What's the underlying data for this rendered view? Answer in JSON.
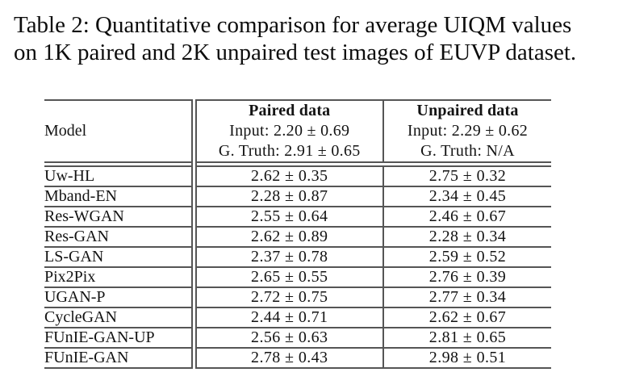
{
  "caption": {
    "line1": "Table 2: Quantitative comparison for average UIQM values",
    "line2": "on 1K paired and 2K unpaired test images of EUVP dataset."
  },
  "table": {
    "header": {
      "model_label": "Model",
      "paired": {
        "title": "Paired data",
        "input": "Input: 2.20 ± 0.69",
        "gtruth": "G. Truth: 2.91 ± 0.65"
      },
      "unpaired": {
        "title": "Unpaired data",
        "input": "Input: 2.29 ± 0.62",
        "gtruth": "G. Truth: N/A"
      }
    },
    "rows": [
      {
        "model": "Uw-HL",
        "paired": "2.62 ± 0.35",
        "unpaired": "2.75 ± 0.32"
      },
      {
        "model": "Mband-EN",
        "paired": "2.28 ± 0.87",
        "unpaired": "2.34 ± 0.45"
      },
      {
        "model": "Res-WGAN",
        "paired": "2.55 ± 0.64",
        "unpaired": "2.46 ± 0.67"
      },
      {
        "model": "Res-GAN",
        "paired": "2.62 ± 0.89",
        "unpaired": "2.28 ± 0.34"
      },
      {
        "model": "LS-GAN",
        "paired": "2.37 ± 0.78",
        "unpaired": "2.59 ± 0.52"
      },
      {
        "model": "Pix2Pix",
        "paired": "2.65 ± 0.55",
        "unpaired": "2.76 ± 0.39"
      },
      {
        "model": "UGAN-P",
        "paired": "2.72 ± 0.75",
        "unpaired": "2.77 ± 0.34"
      },
      {
        "model": "CycleGAN",
        "paired": "2.44 ± 0.71",
        "unpaired": "2.62 ± 0.67"
      },
      {
        "model": "FUnIE-GAN-UP",
        "paired": "2.56 ± 0.63",
        "unpaired": "2.81 ± 0.65"
      },
      {
        "model": "FUnIE-GAN",
        "paired": "2.78 ± 0.43",
        "unpaired": "2.98 ± 0.51"
      }
    ]
  },
  "colors": {
    "background": "#ffffff",
    "text": "#111111",
    "rule": "#555555"
  }
}
